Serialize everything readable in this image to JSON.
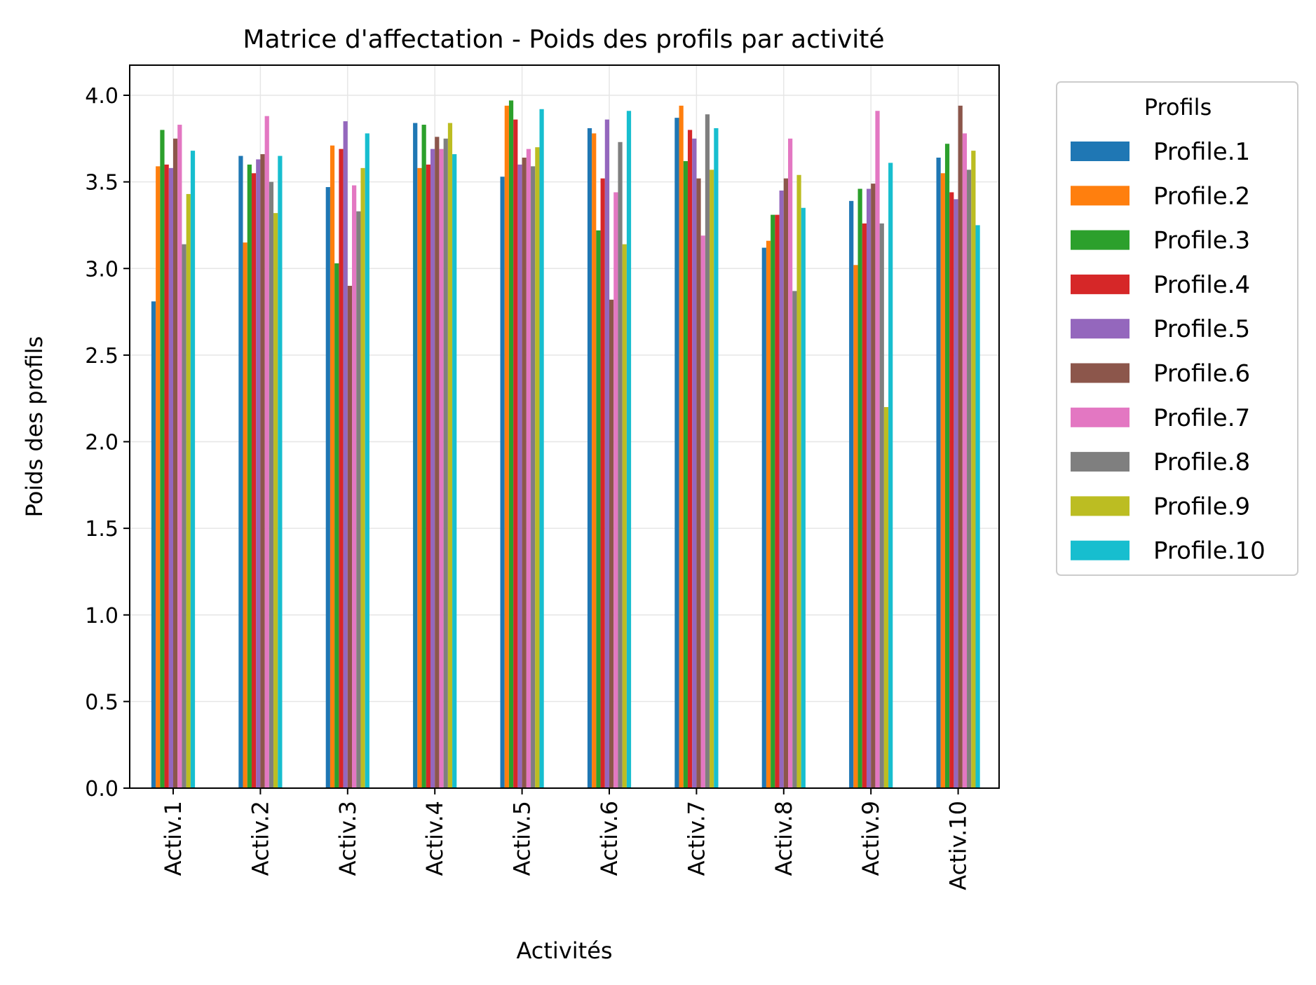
{
  "chart_data": {
    "type": "bar",
    "title": "Matrice d'affectation - Poids des profils par activité",
    "xlabel": "Activités",
    "ylabel": "Poids des profils",
    "ylim": [
      0,
      4.16
    ],
    "yticks": [
      "0.0",
      "0.5",
      "1.0",
      "1.5",
      "2.0",
      "2.5",
      "3.0",
      "3.5",
      "4.0"
    ],
    "grid": true,
    "legend": {
      "title": "Profils",
      "placement": "outside right"
    },
    "categories": [
      "Activ.1",
      "Activ.2",
      "Activ.3",
      "Activ.4",
      "Activ.5",
      "Activ.6",
      "Activ.7",
      "Activ.8",
      "Activ.9",
      "Activ.10"
    ],
    "series": [
      {
        "name": "Profile.1",
        "color": "#1f77b4",
        "values": [
          2.81,
          3.65,
          3.47,
          3.84,
          3.53,
          3.81,
          3.87,
          3.12,
          3.39,
          3.64
        ]
      },
      {
        "name": "Profile.2",
        "color": "#ff7f0e",
        "values": [
          3.59,
          3.15,
          3.71,
          3.58,
          3.94,
          3.78,
          3.94,
          3.16,
          3.02,
          3.55
        ]
      },
      {
        "name": "Profile.3",
        "color": "#2ca02c",
        "values": [
          3.8,
          3.6,
          3.03,
          3.83,
          3.97,
          3.22,
          3.62,
          3.31,
          3.46,
          3.72
        ]
      },
      {
        "name": "Profile.4",
        "color": "#d62728",
        "values": [
          3.6,
          3.55,
          3.69,
          3.6,
          3.86,
          3.52,
          3.8,
          3.31,
          3.26,
          3.44
        ]
      },
      {
        "name": "Profile.5",
        "color": "#9467bd",
        "values": [
          3.58,
          3.63,
          3.85,
          3.69,
          3.6,
          3.86,
          3.75,
          3.45,
          3.46,
          3.4
        ]
      },
      {
        "name": "Profile.6",
        "color": "#8c564b",
        "values": [
          3.75,
          3.66,
          2.9,
          3.76,
          3.64,
          2.82,
          3.52,
          3.52,
          3.49,
          3.94
        ]
      },
      {
        "name": "Profile.7",
        "color": "#e377c2",
        "values": [
          3.83,
          3.88,
          3.48,
          3.69,
          3.69,
          3.44,
          3.19,
          3.75,
          3.91,
          3.78
        ]
      },
      {
        "name": "Profile.8",
        "color": "#7f7f7f",
        "values": [
          3.14,
          3.5,
          3.33,
          3.75,
          3.59,
          3.73,
          3.89,
          2.87,
          3.26,
          3.57
        ]
      },
      {
        "name": "Profile.9",
        "color": "#bcbd22",
        "values": [
          3.43,
          3.32,
          3.58,
          3.84,
          3.7,
          3.14,
          3.57,
          3.54,
          2.2,
          3.68
        ]
      },
      {
        "name": "Profile.10",
        "color": "#17becf",
        "values": [
          3.68,
          3.65,
          3.78,
          3.66,
          3.92,
          3.91,
          3.81,
          3.35,
          3.61,
          3.25
        ]
      }
    ]
  }
}
